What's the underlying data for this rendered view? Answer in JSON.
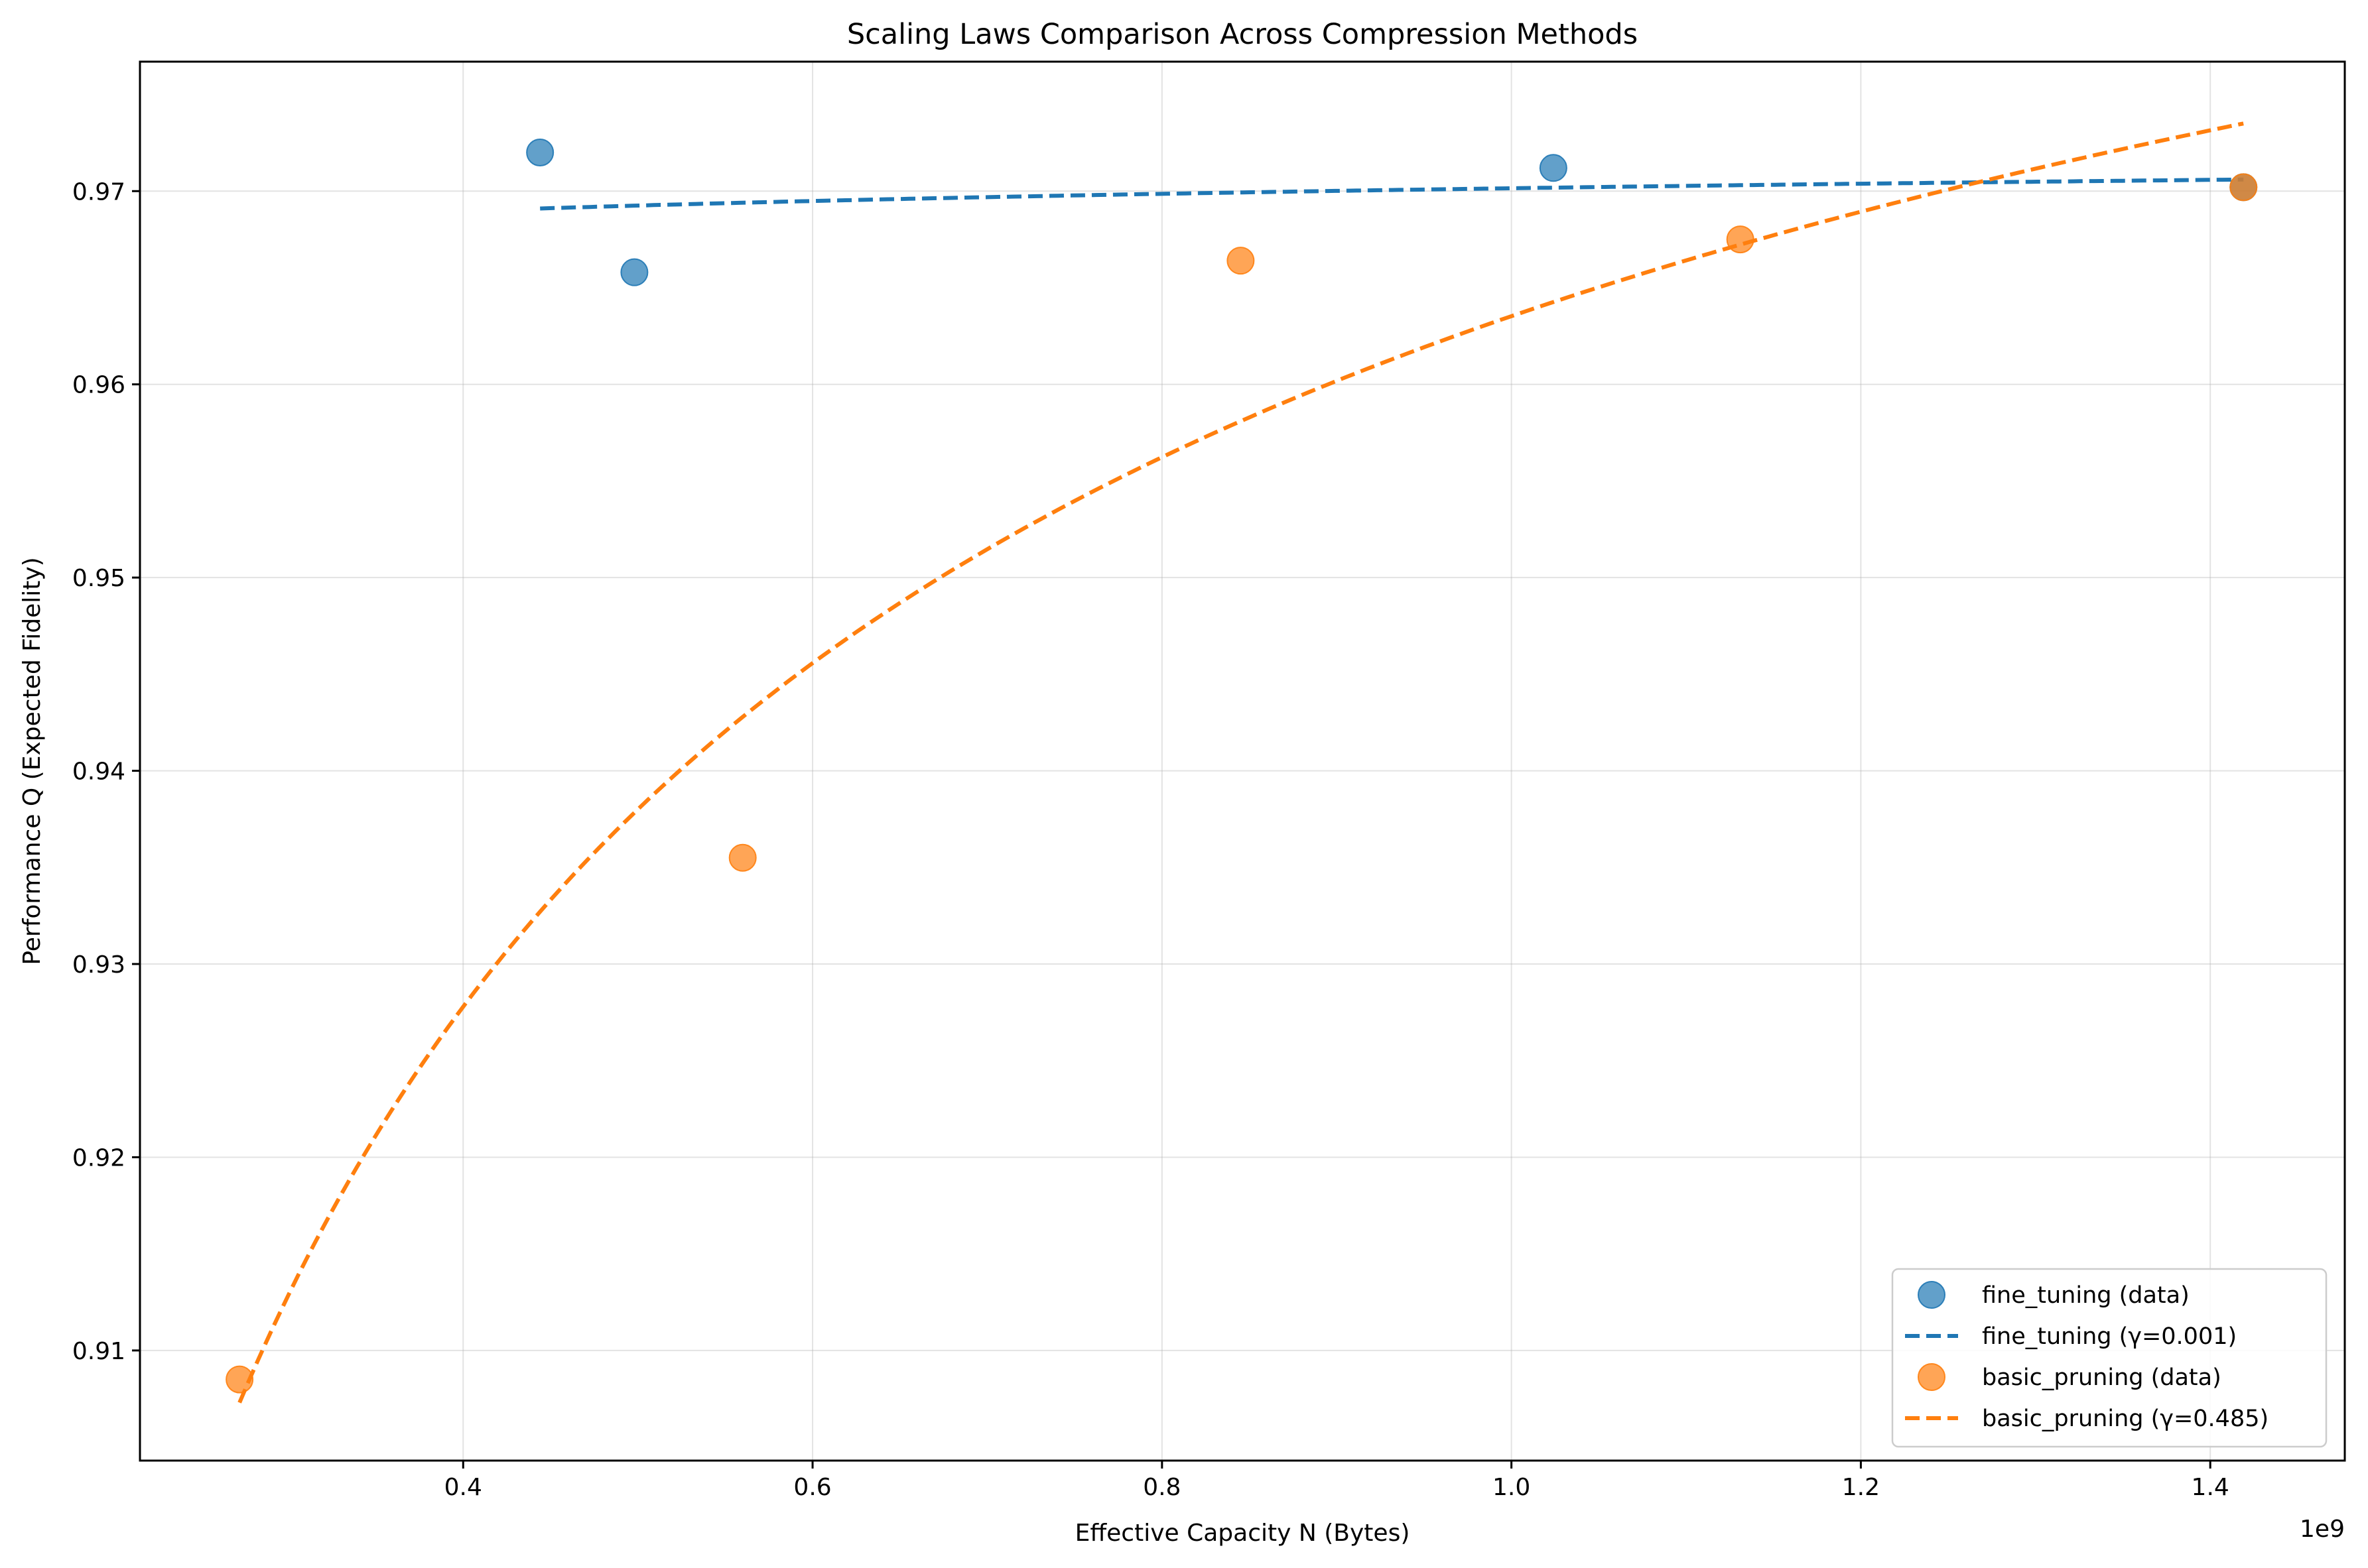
{
  "chart_data": {
    "type": "scatter",
    "title": "Scaling Laws Comparison Across Compression Methods",
    "xlabel": "Effective Capacity N (Bytes)",
    "ylabel": "Performance Q (Expected Fidelity)",
    "x_offset_label": "1e9",
    "x_scale_factor": 1000000000,
    "xlim": [
      0.215,
      1.477
    ],
    "ylim": [
      0.9043,
      0.9767
    ],
    "x_ticks": [
      {
        "value": 0.4,
        "label": "0.4"
      },
      {
        "value": 0.6,
        "label": "0.6"
      },
      {
        "value": 0.8,
        "label": "0.8"
      },
      {
        "value": 1.0,
        "label": "1.0"
      },
      {
        "value": 1.2,
        "label": "1.2"
      },
      {
        "value": 1.4,
        "label": "1.4"
      }
    ],
    "y_ticks": [
      {
        "value": 0.91,
        "label": "0.91"
      },
      {
        "value": 0.92,
        "label": "0.92"
      },
      {
        "value": 0.93,
        "label": "0.93"
      },
      {
        "value": 0.94,
        "label": "0.94"
      },
      {
        "value": 0.95,
        "label": "0.95"
      },
      {
        "value": 0.96,
        "label": "0.96"
      },
      {
        "value": 0.97,
        "label": "0.97"
      }
    ],
    "grid": true,
    "legend_position": "lower-right",
    "series": [
      {
        "name": "fine_tuning (data)",
        "kind": "scatter",
        "color": "#1f77b4",
        "points": [
          {
            "x": 0.444,
            "y": 0.972
          },
          {
            "x": 0.498,
            "y": 0.9658
          },
          {
            "x": 1.024,
            "y": 0.9712
          },
          {
            "x": 1.419,
            "y": 0.9702
          }
        ]
      },
      {
        "name": "fine_tuning (γ=0.001)",
        "kind": "fit",
        "color": "#1f77b4",
        "gamma": 0.001,
        "x_range": [
          0.444,
          1.419
        ],
        "y_at_range": [
          0.9691,
          0.9706
        ]
      },
      {
        "name": "basic_pruning (data)",
        "kind": "scatter",
        "color": "#ff7f0e",
        "points": [
          {
            "x": 0.272,
            "y": 0.9085
          },
          {
            "x": 0.56,
            "y": 0.9355
          },
          {
            "x": 0.845,
            "y": 0.9664
          },
          {
            "x": 1.131,
            "y": 0.9675
          },
          {
            "x": 1.419,
            "y": 0.9702
          }
        ]
      },
      {
        "name": "basic_pruning (γ=0.485)",
        "kind": "fit",
        "color": "#ff7f0e",
        "gamma": 0.485,
        "x_range": [
          0.272,
          1.419
        ],
        "y_at_range": [
          0.9073,
          0.9735
        ]
      }
    ]
  }
}
